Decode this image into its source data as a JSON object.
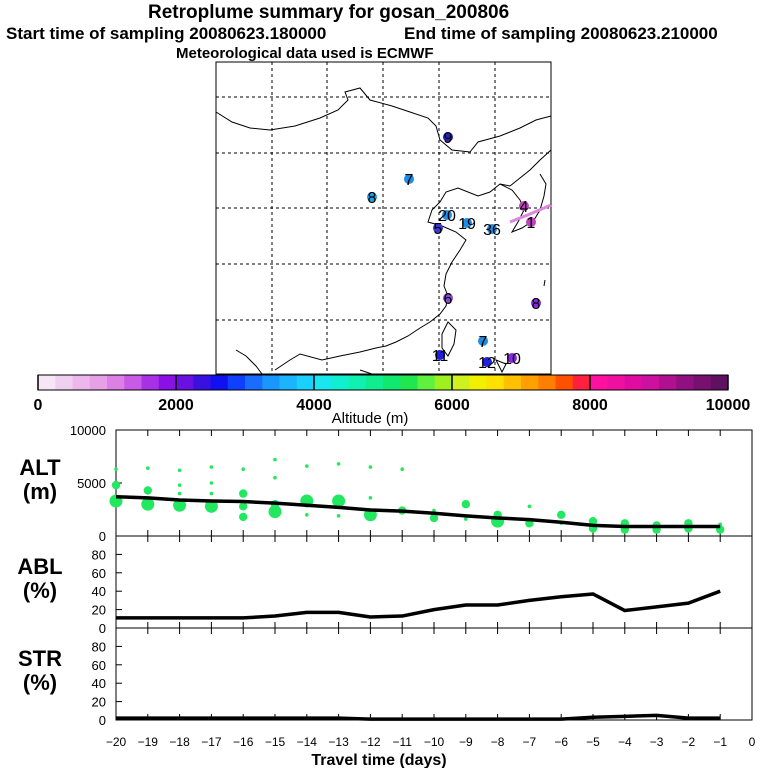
{
  "header": {
    "title": "Retroplume summary for gosan_200806",
    "start_time": "Start time of sampling 20080623.180000",
    "end_time": "End time of sampling 20080623.210000",
    "met_data": "Meteorological data used is ECMWF"
  },
  "map": {
    "markers": [
      {
        "label": "9",
        "color": "#2a1fb8"
      },
      {
        "label": "7",
        "color": "#1e8ce6"
      },
      {
        "label": "8",
        "color": "#1aa0e8"
      },
      {
        "label": "20",
        "color": "#1e8ce6"
      },
      {
        "label": "19",
        "color": "#1e8ce6"
      },
      {
        "label": "5",
        "color": "#3a3ad0"
      },
      {
        "label": "36",
        "color": "#1e8ce6"
      },
      {
        "label": "4",
        "color": "#c040c0"
      },
      {
        "label": "1",
        "color": "#c040c0"
      },
      {
        "label": "6",
        "color": "#8a4ad0"
      },
      {
        "label": "8",
        "color": "#8a2ae0"
      },
      {
        "label": "7",
        "color": "#1e8ce6"
      },
      {
        "label": "11",
        "color": "#2020e0"
      },
      {
        "label": "12",
        "color": "#2020e0"
      },
      {
        "label": "10",
        "color": "#8a2ae0"
      }
    ]
  },
  "colorbar": {
    "tick_labels": [
      "0",
      "2000",
      "4000",
      "6000",
      "8000",
      "10000"
    ],
    "label": "Altitude (m)",
    "colors": [
      "#f6e6f6",
      "#f0d0f0",
      "#ecb8ec",
      "#e6a0e6",
      "#dc80e6",
      "#c85ae6",
      "#a830e6",
      "#8a10e6",
      "#6a10e0",
      "#3a10e0",
      "#1010f0",
      "#1040ff",
      "#1a6cff",
      "#1a96ff",
      "#1ab4ff",
      "#1ad0ff",
      "#1ae6f0",
      "#10f0d0",
      "#10f0b0",
      "#10ec90",
      "#10e870",
      "#20e650",
      "#60f040",
      "#a0f020",
      "#d0f020",
      "#f0f000",
      "#ffe000",
      "#ffc000",
      "#ffa000",
      "#ff8000",
      "#ff5000",
      "#ff2040",
      "#ff10a0",
      "#f010a0",
      "#e00ca0",
      "#cc10a0",
      "#b01090",
      "#901080",
      "#781070",
      "#601060"
    ]
  },
  "chart_data": [
    {
      "type": "line",
      "panel": "ALT",
      "ylabel": "ALT\n(m)",
      "ylabel_lines": [
        "ALT",
        "(m)"
      ],
      "xlim": [
        -20,
        0
      ],
      "ylim": [
        0,
        10000
      ],
      "ytick_labels": [
        "10000",
        "5000",
        "0"
      ],
      "series": [
        {
          "name": "mean altitude",
          "x": [
            -20,
            -19,
            -18,
            -17,
            -16,
            -15,
            -14,
            -13,
            -12,
            -11,
            -10,
            -9,
            -8,
            -7,
            -6,
            -5,
            -4,
            -3,
            -2,
            -1
          ],
          "values": [
            3700,
            3600,
            3400,
            3300,
            3250,
            3100,
            2900,
            2700,
            2450,
            2350,
            2150,
            1900,
            1700,
            1550,
            1300,
            1000,
            900,
            900,
            900,
            900
          ]
        }
      ],
      "scatter_points": [
        {
          "x": -20,
          "y": 6300,
          "r": 1
        },
        {
          "x": -20,
          "y": 4800,
          "r": 2
        },
        {
          "x": -20,
          "y": 3300,
          "r": 3
        },
        {
          "x": -19,
          "y": 6400,
          "r": 1
        },
        {
          "x": -19,
          "y": 4300,
          "r": 2
        },
        {
          "x": -19,
          "y": 3000,
          "r": 3
        },
        {
          "x": -18,
          "y": 6200,
          "r": 1
        },
        {
          "x": -18,
          "y": 4800,
          "r": 1
        },
        {
          "x": -18,
          "y": 4000,
          "r": 1
        },
        {
          "x": -18,
          "y": 2900,
          "r": 3
        },
        {
          "x": -17,
          "y": 6500,
          "r": 1
        },
        {
          "x": -17,
          "y": 5000,
          "r": 1
        },
        {
          "x": -17,
          "y": 4000,
          "r": 1
        },
        {
          "x": -17,
          "y": 2800,
          "r": 3
        },
        {
          "x": -16,
          "y": 6300,
          "r": 1
        },
        {
          "x": -16,
          "y": 4000,
          "r": 2
        },
        {
          "x": -16,
          "y": 2800,
          "r": 2
        },
        {
          "x": -16,
          "y": 1800,
          "r": 2
        },
        {
          "x": -15,
          "y": 7200,
          "r": 1
        },
        {
          "x": -15,
          "y": 5500,
          "r": 1
        },
        {
          "x": -15,
          "y": 3000,
          "r": 2
        },
        {
          "x": -15,
          "y": 2300,
          "r": 3
        },
        {
          "x": -14,
          "y": 6600,
          "r": 1
        },
        {
          "x": -14,
          "y": 3300,
          "r": 3
        },
        {
          "x": -14,
          "y": 2000,
          "r": 1
        },
        {
          "x": -13,
          "y": 6800,
          "r": 1
        },
        {
          "x": -13,
          "y": 3300,
          "r": 3
        },
        {
          "x": -13,
          "y": 1900,
          "r": 1
        },
        {
          "x": -12,
          "y": 6500,
          "r": 1
        },
        {
          "x": -12,
          "y": 3600,
          "r": 1
        },
        {
          "x": -12,
          "y": 2000,
          "r": 3
        },
        {
          "x": -11,
          "y": 6300,
          "r": 1
        },
        {
          "x": -11,
          "y": 2400,
          "r": 2
        },
        {
          "x": -10,
          "y": 2400,
          "r": 1
        },
        {
          "x": -10,
          "y": 1700,
          "r": 2
        },
        {
          "x": -9,
          "y": 3000,
          "r": 2
        },
        {
          "x": -9,
          "y": 1600,
          "r": 1
        },
        {
          "x": -8,
          "y": 2000,
          "r": 2
        },
        {
          "x": -8,
          "y": 1400,
          "r": 3
        },
        {
          "x": -7,
          "y": 2800,
          "r": 1
        },
        {
          "x": -7,
          "y": 1200,
          "r": 2
        },
        {
          "x": -6,
          "y": 2000,
          "r": 2
        },
        {
          "x": -6,
          "y": 1200,
          "r": 1
        },
        {
          "x": -5,
          "y": 1400,
          "r": 2
        },
        {
          "x": -5,
          "y": 700,
          "r": 2
        },
        {
          "x": -4,
          "y": 1200,
          "r": 2
        },
        {
          "x": -4,
          "y": 600,
          "r": 2
        },
        {
          "x": -3,
          "y": 1000,
          "r": 2
        },
        {
          "x": -3,
          "y": 600,
          "r": 2
        },
        {
          "x": -2,
          "y": 1200,
          "r": 2
        },
        {
          "x": -2,
          "y": 700,
          "r": 2
        },
        {
          "x": -1,
          "y": 1100,
          "r": 1
        },
        {
          "x": -1,
          "y": 600,
          "r": 2
        }
      ]
    },
    {
      "type": "line",
      "panel": "ABL",
      "ylabel": "ABL\n(%)",
      "ylabel_lines": [
        "ABL",
        "(%)"
      ],
      "xlim": [
        -20,
        0
      ],
      "ylim": [
        0,
        100
      ],
      "ytick_labels": [
        "80",
        "60",
        "40",
        "20",
        "0"
      ],
      "series": [
        {
          "name": "ABL fraction",
          "x": [
            -20,
            -19,
            -18,
            -17,
            -16,
            -15,
            -14,
            -13,
            -12,
            -11,
            -10,
            -9,
            -8,
            -7,
            -6,
            -5,
            -4,
            -3,
            -2,
            -1
          ],
          "values": [
            11,
            11,
            11,
            11,
            11,
            13,
            17,
            17,
            12,
            13,
            20,
            25,
            25,
            30,
            34,
            37,
            19,
            23,
            27,
            40
          ]
        }
      ]
    },
    {
      "type": "line",
      "panel": "STR",
      "ylabel": "STR\n(%)",
      "ylabel_lines": [
        "STR",
        "(%)"
      ],
      "xlim": [
        -20,
        0
      ],
      "ylim": [
        0,
        100
      ],
      "ytick_labels": [
        "80",
        "60",
        "40",
        "20",
        "0"
      ],
      "xlabel": "Travel time (days)",
      "xtick_labels": [
        "−20",
        "−19",
        "−18",
        "−17",
        "−16",
        "−15",
        "−14",
        "−13",
        "−12",
        "−11",
        "−10",
        "−9",
        "−8",
        "−7",
        "−6",
        "−5",
        "−4",
        "−3",
        "−2",
        "−1",
        "0"
      ],
      "series": [
        {
          "name": "stratospheric fraction",
          "x": [
            -20,
            -19,
            -18,
            -17,
            -16,
            -15,
            -14,
            -13,
            -12,
            -11,
            -10,
            -9,
            -8,
            -7,
            -6,
            -5,
            -4,
            -3,
            -2,
            -1
          ],
          "values": [
            2,
            2,
            2,
            2,
            2,
            2,
            2,
            2,
            1,
            1,
            1,
            1,
            1,
            1,
            1,
            3,
            4,
            5,
            2,
            2
          ]
        }
      ]
    }
  ]
}
